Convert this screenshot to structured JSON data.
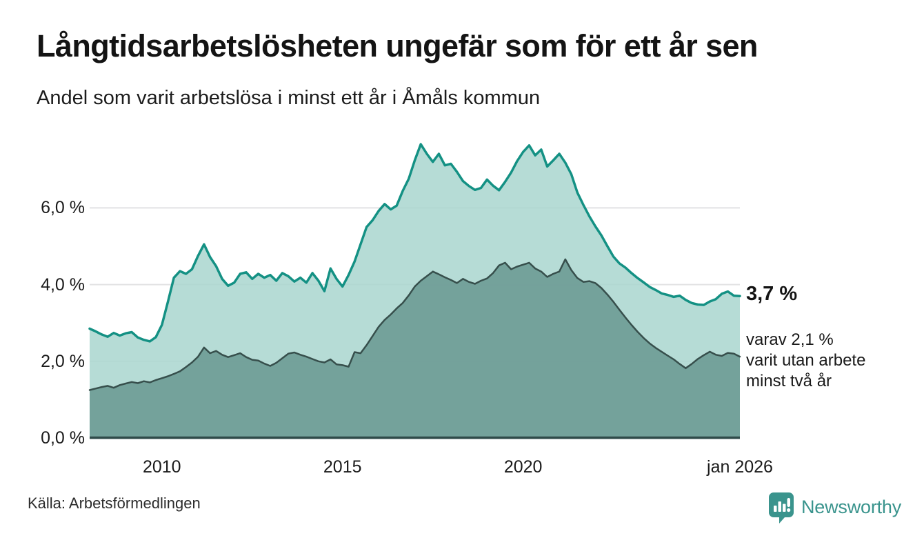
{
  "header": {
    "title": "Långtidsarbetslösheten ungefär som för ett år sen",
    "subtitle": "Andel som varit arbetslösa i minst ett år i Åmåls kommun"
  },
  "chart_data": {
    "type": "area",
    "title": "Långtidsarbetslösheten ungefär som för ett år sen",
    "subtitle": "Andel som varit arbetslösa i minst ett år i Åmåls kommun",
    "x_range_years": [
      2008.0,
      2026.0
    ],
    "points_per_year": 6,
    "ylim": [
      0,
      8
    ],
    "grid": "horizontal",
    "legend_position": "none (direct annotation at line end)",
    "y_ticks": [
      {
        "value": 0,
        "label": "0,0 %"
      },
      {
        "value": 2,
        "label": "2,0 %"
      },
      {
        "value": 4,
        "label": "4,0 %"
      },
      {
        "value": 6,
        "label": "6,0 %"
      }
    ],
    "x_ticks": [
      {
        "year": 2010,
        "label": "2010"
      },
      {
        "year": 2015,
        "label": "2015"
      },
      {
        "year": 2020,
        "label": "2020"
      },
      {
        "year": 2026,
        "label": "jan 2026"
      }
    ],
    "series": [
      {
        "name": "Andel arbetslösa minst ett år",
        "stroke": "#149184",
        "fill": "#a9d6cf",
        "fill_opacity": 0.85,
        "stroke_width": 3.5,
        "last_value_label": "3,7 %",
        "values": [
          2.85,
          2.78,
          2.7,
          2.64,
          2.74,
          2.67,
          2.73,
          2.76,
          2.62,
          2.56,
          2.52,
          2.63,
          2.95,
          3.55,
          4.18,
          4.35,
          4.28,
          4.4,
          4.75,
          5.05,
          4.72,
          4.48,
          4.15,
          3.97,
          4.05,
          4.28,
          4.32,
          4.15,
          4.28,
          4.18,
          4.25,
          4.1,
          4.3,
          4.22,
          4.08,
          4.18,
          4.05,
          4.3,
          4.1,
          3.83,
          4.42,
          4.15,
          3.95,
          4.25,
          4.6,
          5.05,
          5.5,
          5.68,
          5.92,
          6.1,
          5.96,
          6.06,
          6.44,
          6.76,
          7.24,
          7.66,
          7.41,
          7.2,
          7.41,
          7.11,
          7.15,
          6.94,
          6.7,
          6.57,
          6.47,
          6.52,
          6.74,
          6.58,
          6.46,
          6.68,
          6.92,
          7.22,
          7.46,
          7.63,
          7.37,
          7.52,
          7.08,
          7.24,
          7.41,
          7.18,
          6.88,
          6.4,
          6.08,
          5.78,
          5.52,
          5.28,
          5.0,
          4.73,
          4.55,
          4.44,
          4.3,
          4.17,
          4.06,
          3.94,
          3.86,
          3.77,
          3.73,
          3.68,
          3.71,
          3.6,
          3.52,
          3.48,
          3.47,
          3.56,
          3.62,
          3.76,
          3.82,
          3.71,
          3.7
        ]
      },
      {
        "name": "Andel arbetslösa minst två år",
        "stroke": "#374f4c",
        "fill": "#6f9c96",
        "fill_opacity": 0.92,
        "stroke_width": 2.5,
        "last_value_label": "2,1 %",
        "values": [
          1.25,
          1.29,
          1.33,
          1.36,
          1.31,
          1.38,
          1.42,
          1.46,
          1.43,
          1.48,
          1.45,
          1.51,
          1.56,
          1.61,
          1.67,
          1.74,
          1.85,
          1.97,
          2.12,
          2.36,
          2.21,
          2.27,
          2.17,
          2.11,
          2.16,
          2.21,
          2.11,
          2.04,
          2.02,
          1.94,
          1.88,
          1.96,
          2.08,
          2.2,
          2.23,
          2.17,
          2.12,
          2.06,
          2.0,
          1.97,
          2.05,
          1.92,
          1.9,
          1.86,
          2.24,
          2.21,
          2.42,
          2.66,
          2.9,
          3.08,
          3.22,
          3.38,
          3.52,
          3.72,
          3.95,
          4.1,
          4.22,
          4.34,
          4.27,
          4.19,
          4.12,
          4.04,
          4.15,
          4.07,
          4.02,
          4.1,
          4.16,
          4.3,
          4.5,
          4.57,
          4.4,
          4.47,
          4.52,
          4.57,
          4.42,
          4.34,
          4.2,
          4.28,
          4.34,
          4.66,
          4.38,
          4.17,
          4.07,
          4.09,
          4.04,
          3.91,
          3.74,
          3.55,
          3.34,
          3.14,
          2.95,
          2.77,
          2.61,
          2.47,
          2.35,
          2.25,
          2.15,
          2.05,
          1.93,
          1.82,
          1.93,
          2.06,
          2.16,
          2.25,
          2.17,
          2.14,
          2.22,
          2.2,
          2.12
        ]
      }
    ],
    "annotations": {
      "value_label": "3,7 %",
      "sub_label_lines": [
        "varav 2,1 %",
        "varit utan arbete",
        "minst två år"
      ]
    }
  },
  "colors": {
    "line_primary": "#149184",
    "fill_primary": "#a9d6cf",
    "line_secondary": "#374f4c",
    "fill_secondary": "#6f9c96",
    "gridline": "#e2e2e4",
    "axis_line": "#2f4b49",
    "text": "#1a1a1a",
    "brand_teal": "#3a948d"
  },
  "footer": {
    "source": "Källa: Arbetsförmedlingen",
    "brand": "Newsworthy"
  }
}
